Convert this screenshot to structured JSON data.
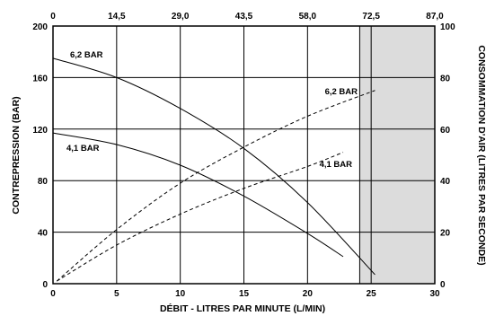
{
  "chart_data": {
    "type": "line",
    "title": "",
    "xlabel": "DÉBIT - LITRES PAR MINUTE (L/MIN)",
    "ylabel": "CONTREPRESSION (BAR)",
    "y2label": "CONSOMMATION D'AIR (LITRES PAR SECONDE)",
    "xlim": [
      0,
      30
    ],
    "ylim": [
      0,
      200
    ],
    "y2lim": [
      0,
      100
    ],
    "x_ticks": [
      "0",
      "5",
      "10",
      "15",
      "20",
      "25",
      "30"
    ],
    "x2_ticks": [
      "0",
      "14,5",
      "29,0",
      "43,5",
      "58,0",
      "72,5",
      "87,0"
    ],
    "y_ticks": [
      "0",
      "40",
      "80",
      "120",
      "160",
      "200"
    ],
    "y2_ticks": [
      "0",
      "20",
      "40",
      "60",
      "80",
      "100"
    ],
    "grid": true,
    "shaded_region": {
      "x_from": 24.1,
      "x_to": 30,
      "color": "#dcdcdc"
    },
    "series": [
      {
        "name": "6,2 BAR",
        "style": "solid",
        "axis": "left",
        "x": [
          0,
          5,
          10,
          15,
          20,
          25.3
        ],
        "y": [
          175,
          160,
          136,
          105,
          63,
          7
        ]
      },
      {
        "name": "4,1 BAR",
        "style": "solid",
        "axis": "left",
        "x": [
          0,
          5,
          10,
          15,
          20,
          22.8
        ],
        "y": [
          117,
          108,
          92,
          68,
          39,
          21
        ]
      },
      {
        "name": "6,2 BAR",
        "style": "dashed",
        "axis": "right",
        "x": [
          0.3,
          5,
          10,
          15,
          20,
          25.3
        ],
        "y": [
          1,
          21,
          39,
          53,
          65,
          75
        ]
      },
      {
        "name": "4,1 BAR",
        "style": "dashed",
        "axis": "right",
        "x": [
          0.3,
          5,
          10,
          15,
          20,
          22.8
        ],
        "y": [
          1,
          15,
          27,
          37,
          45.5,
          51
        ]
      }
    ]
  }
}
